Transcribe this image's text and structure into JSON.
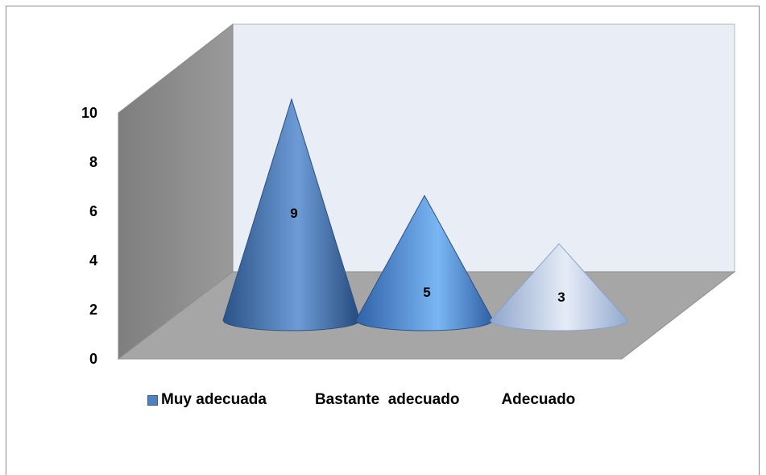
{
  "chart_data": {
    "type": "bar",
    "bar_shape": "cone-3d",
    "categories": [
      "Muy adecuada",
      "Bastante  adecuado",
      "Adecuado"
    ],
    "values": [
      9,
      5,
      3
    ],
    "data_labels": [
      "9",
      "5",
      "3"
    ],
    "ylim": [
      0,
      10
    ],
    "yticks": [
      "0",
      "2",
      "4",
      "6",
      "8",
      "10"
    ],
    "title": "",
    "xlabel": "",
    "ylabel": "",
    "grid": false,
    "legend": {
      "placement": "bottom",
      "entries": [
        "Muy adecuada",
        "Bastante  adecuado",
        "Adecuado"
      ]
    },
    "colors": [
      "#4a7cb8",
      "#5e9ae0",
      "#c6d3ea"
    ],
    "wall_color": "#e9edf6",
    "floor_color": "#a6a6a6",
    "side_wall_color": "#8a8a8a"
  }
}
